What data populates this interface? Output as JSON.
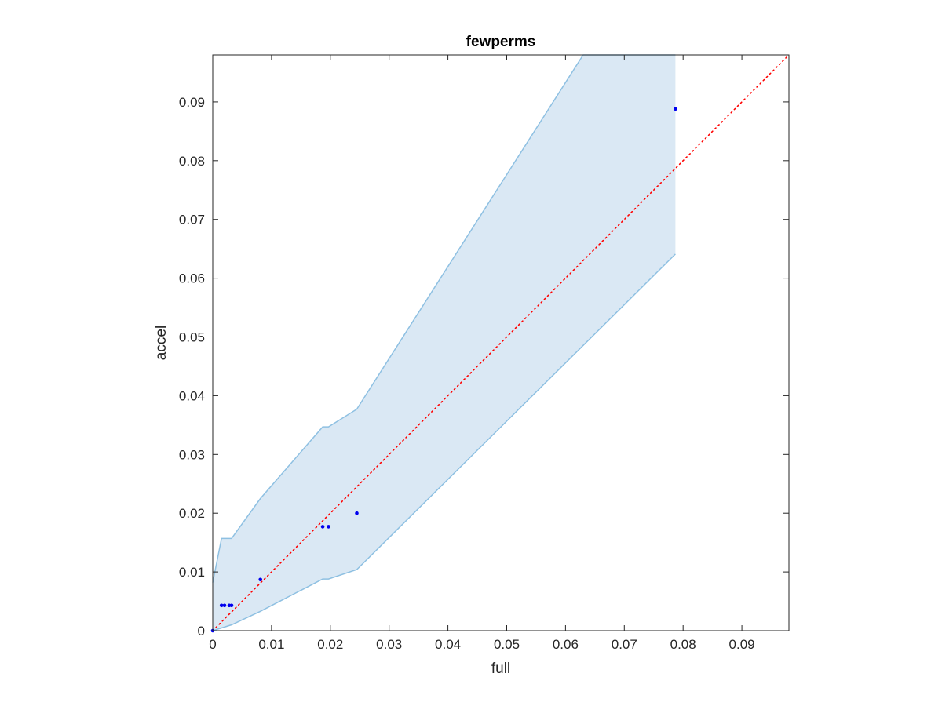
{
  "chart_data": {
    "type": "scatter",
    "title": "fewperms",
    "xlabel": "full",
    "ylabel": "accel",
    "xlim": [
      0,
      0.098
    ],
    "ylim": [
      0,
      0.098
    ],
    "grid": false,
    "x_ticks": [
      0,
      0.01,
      0.02,
      0.03,
      0.04,
      0.05,
      0.06,
      0.07,
      0.08,
      0.09
    ],
    "x_tick_labels": [
      "0",
      "0.01",
      "0.02",
      "0.03",
      "0.04",
      "0.05",
      "0.06",
      "0.07",
      "0.08",
      "0.09"
    ],
    "y_ticks": [
      0,
      0.01,
      0.02,
      0.03,
      0.04,
      0.05,
      0.06,
      0.07,
      0.08,
      0.09
    ],
    "y_tick_labels": [
      "0",
      "0.01",
      "0.02",
      "0.03",
      "0.04",
      "0.05",
      "0.06",
      "0.07",
      "0.08",
      "0.09"
    ],
    "points": {
      "x": [
        0,
        0.0015,
        0.002,
        0.0028,
        0.0032,
        0.0081,
        0.0187,
        0.0197,
        0.0245,
        0.0787
      ],
      "y": [
        0,
        0.0043,
        0.0043,
        0.0043,
        0.0043,
        0.0087,
        0.0177,
        0.0177,
        0.02,
        0.0888
      ],
      "color": "#0000ee"
    },
    "band": {
      "upper": [
        [
          0,
          0.0082
        ],
        [
          0.0015,
          0.0157
        ],
        [
          0.0032,
          0.0157
        ],
        [
          0.0081,
          0.0225
        ],
        [
          0.0187,
          0.0347
        ],
        [
          0.0197,
          0.0347
        ],
        [
          0.0245,
          0.0377
        ],
        [
          0.063,
          0.098
        ],
        [
          0.0787,
          0.098
        ]
      ],
      "lower": [
        [
          0,
          0
        ],
        [
          0.0032,
          0.001
        ],
        [
          0.0081,
          0.0033
        ],
        [
          0.0187,
          0.0088
        ],
        [
          0.0197,
          0.0088
        ],
        [
          0.0245,
          0.0104
        ],
        [
          0.0787,
          0.0641
        ]
      ],
      "fill_color": "#dae8f4",
      "line_color": "#8ec0e2"
    },
    "reference_line": {
      "x": [
        0,
        0.098
      ],
      "y": [
        0,
        0.098
      ],
      "color": "#ff0000",
      "style": "dotted"
    }
  }
}
